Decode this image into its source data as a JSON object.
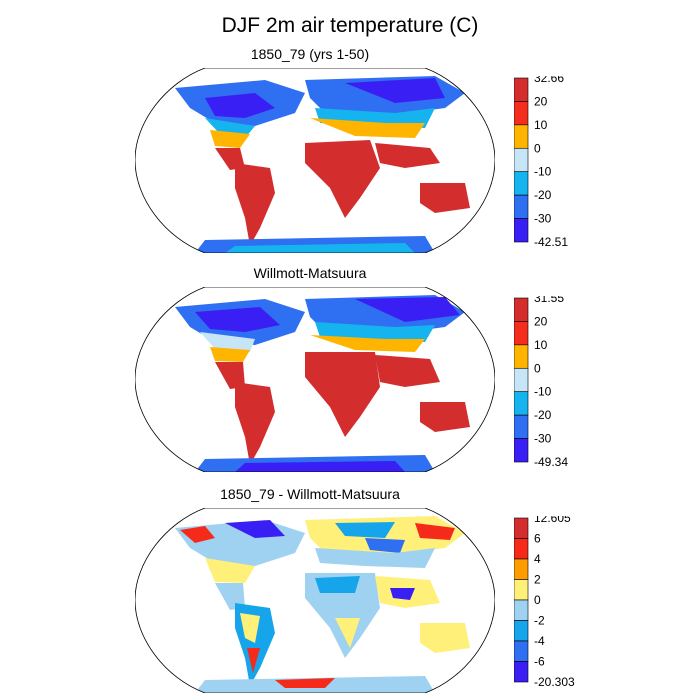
{
  "figure": {
    "title": "DJF 2m air temperature (C)",
    "panels": [
      {
        "id": "model",
        "title": "1850_79 (yrs 1-50)",
        "colorbar": {
          "labels": [
            "32.66",
            "20",
            "10",
            "0",
            "-10",
            "-20",
            "-30",
            "-42.51"
          ],
          "colors": [
            "#d42d2d",
            "#f42d1d",
            "#ffb400",
            "#c6e6f7",
            "#15b4ee",
            "#2f6ff1",
            "#3a1ff5"
          ]
        }
      },
      {
        "id": "obs",
        "title": "Willmott-Matsuura",
        "colorbar": {
          "labels": [
            "31.55",
            "20",
            "10",
            "0",
            "-10",
            "-20",
            "-30",
            "-49.34"
          ],
          "colors": [
            "#d42d2d",
            "#f42d1d",
            "#ffb400",
            "#c6e6f7",
            "#15b4ee",
            "#2f6ff1",
            "#3a1ff5"
          ]
        }
      },
      {
        "id": "diff",
        "title": "1850_79 - Willmott-Matsuura",
        "colorbar": {
          "labels": [
            "12.605",
            "6",
            "4",
            "2",
            "0",
            "-2",
            "-4",
            "-6",
            "-20.303"
          ],
          "colors": [
            "#d42d2d",
            "#f52a1a",
            "#ff9c00",
            "#fff07a",
            "#9fd2f0",
            "#16a4ea",
            "#2f6ff1",
            "#3a1ff5"
          ]
        }
      }
    ]
  }
}
